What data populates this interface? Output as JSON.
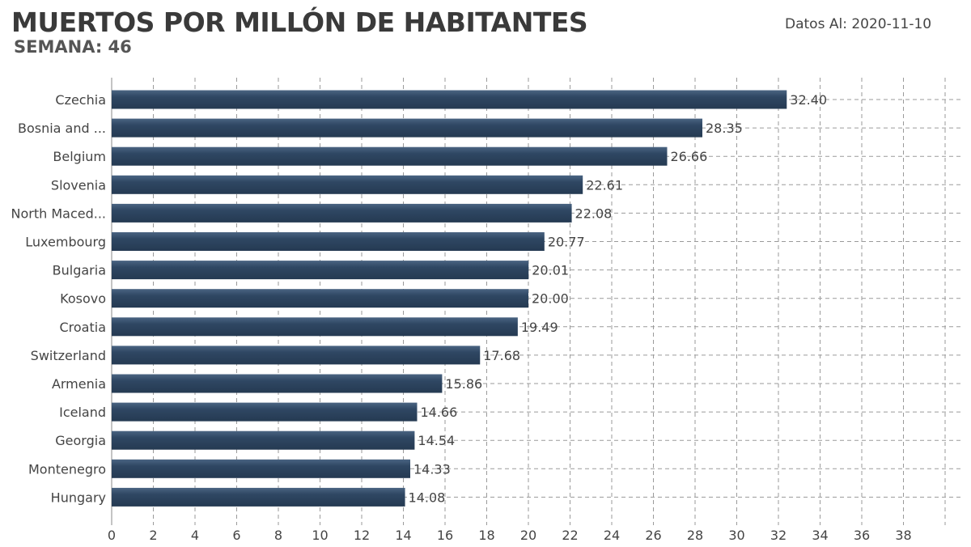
{
  "header": {
    "title": "MUERTOS POR MILLÓN DE HABITANTES",
    "subtitle": "SEMANA: 46",
    "date_label": "Datos Al: 2020-11-10"
  },
  "colors": {
    "bar": "#2e4560",
    "bar_light": "#3b5573",
    "grid": "#9a9a9a"
  },
  "chart_data": {
    "type": "bar",
    "orientation": "horizontal",
    "title": "MUERTOS POR MILLÓN DE HABITANTES",
    "subtitle": "SEMANA: 46",
    "categories": [
      "Czechia",
      "Bosnia and ...",
      "Belgium",
      "Slovenia",
      "North Maced...",
      "Luxembourg",
      "Bulgaria",
      "Kosovo",
      "Croatia",
      "Switzerland",
      "Armenia",
      "Iceland",
      "Georgia",
      "Montenegro",
      "Hungary"
    ],
    "values": [
      32.4,
      28.35,
      26.66,
      22.61,
      22.08,
      20.77,
      20.01,
      20.0,
      19.49,
      17.68,
      15.86,
      14.66,
      14.54,
      14.33,
      14.08
    ],
    "value_labels": [
      "32.40",
      "28.35",
      "26.66",
      "22.61",
      "22.08",
      "20.77",
      "20.01",
      "20.00",
      "19.49",
      "17.68",
      "15.86",
      "14.66",
      "14.54",
      "14.33",
      "14.08"
    ],
    "xticks": [
      0,
      2,
      4,
      6,
      8,
      10,
      12,
      14,
      16,
      18,
      20,
      22,
      24,
      26,
      28,
      30,
      32,
      34,
      36,
      38
    ],
    "xlim": [
      0,
      40
    ],
    "grid": true,
    "grid_style": "dashed",
    "xlabel": "",
    "ylabel": ""
  }
}
